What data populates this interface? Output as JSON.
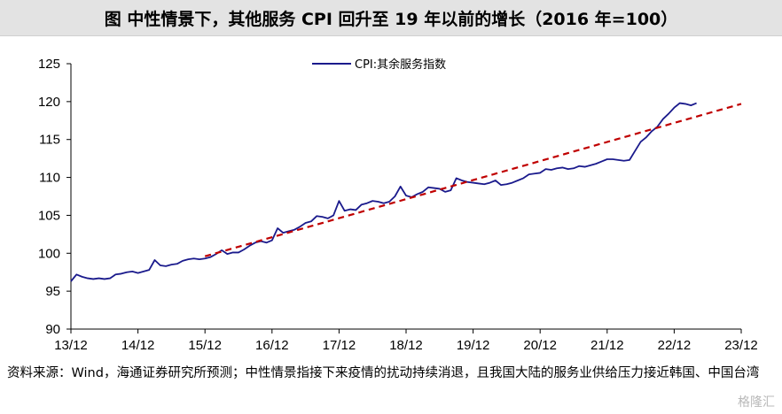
{
  "title": "图  中性情景下，其他服务 CPI 回升至 19 年以前的增长（2016 年=100）",
  "source_note": "资料来源：Wind，海通证券研究所预测；中性情景指接下来疫情的扰动持续消退，且我国大陆的服务业供给压力接近韩国、中国台湾",
  "watermark": "格隆汇",
  "colors": {
    "series": "#1a1a8c",
    "trend": "#c00000",
    "axis": "#000000"
  },
  "chart_data": {
    "type": "line",
    "title": "",
    "xlabel": "",
    "ylabel": "",
    "ylim": [
      90,
      125
    ],
    "yticks": [
      90,
      95,
      100,
      105,
      110,
      115,
      120,
      125
    ],
    "x_start": "2013-12",
    "xticks": [
      "13/12",
      "14/12",
      "15/12",
      "16/12",
      "17/12",
      "18/12",
      "19/12",
      "20/12",
      "21/12",
      "22/12",
      "23/12"
    ],
    "legend_position": "top-center",
    "grid": false,
    "series": [
      {
        "name": "CPI:其余服务指数",
        "style": "solid",
        "values": [
          96.3,
          97.2,
          96.9,
          96.7,
          96.6,
          96.7,
          96.6,
          96.7,
          97.2,
          97.3,
          97.5,
          97.6,
          97.4,
          97.6,
          97.8,
          99.1,
          98.4,
          98.3,
          98.5,
          98.6,
          99.0,
          99.2,
          99.3,
          99.2,
          99.3,
          99.5,
          99.9,
          100.4,
          99.9,
          100.1,
          100.1,
          100.5,
          101.0,
          101.4,
          101.6,
          101.4,
          101.7,
          103.3,
          102.7,
          102.9,
          103.1,
          103.5,
          104.0,
          104.2,
          104.9,
          104.8,
          104.6,
          105.0,
          106.9,
          105.6,
          105.8,
          105.7,
          106.4,
          106.6,
          106.9,
          106.8,
          106.6,
          106.8,
          107.5,
          108.8,
          107.6,
          107.4,
          107.8,
          108.1,
          108.7,
          108.6,
          108.5,
          108.1,
          108.3,
          109.9,
          109.6,
          109.4,
          109.3,
          109.2,
          109.1,
          109.3,
          109.6,
          109.0,
          109.1,
          109.3,
          109.6,
          109.9,
          110.4,
          110.5,
          110.6,
          111.1,
          111.0,
          111.2,
          111.3,
          111.1,
          111.2,
          111.5,
          111.4,
          111.6,
          111.8,
          112.1,
          112.4,
          112.4,
          112.3,
          112.2,
          112.3,
          113.5,
          114.7,
          115.3,
          116.1,
          116.7,
          117.7,
          118.4,
          119.2,
          119.8,
          119.7,
          119.5,
          119.8
        ]
      },
      {
        "name": "",
        "style": "dashed",
        "x_range": [
          "2015-12",
          "2023-12"
        ],
        "values": [
          99.6,
          119.7
        ]
      }
    ]
  }
}
